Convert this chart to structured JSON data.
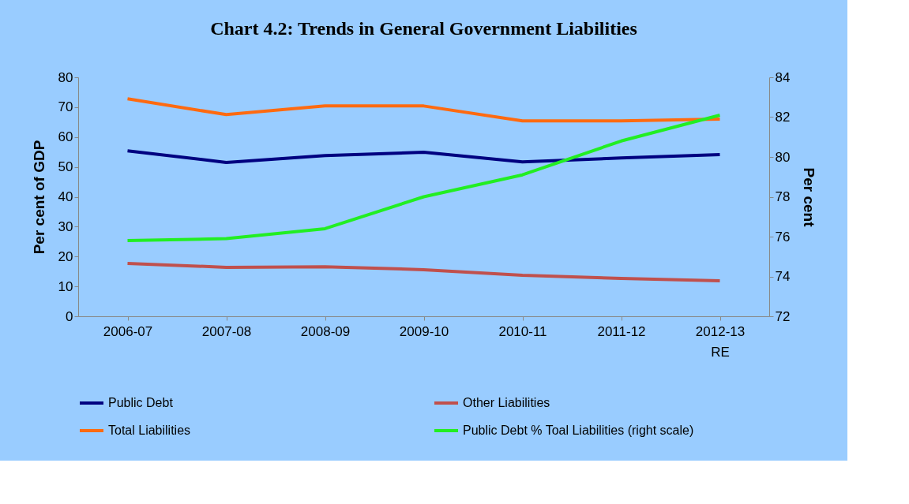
{
  "chart_data": {
    "type": "line",
    "title": "Chart 4.2: Trends in General Government Liabilities",
    "ylabel": "Per cent of GDP",
    "y2label": "Per cent",
    "categories": [
      "2006-07",
      "2007-08",
      "2008-09",
      "2009-10",
      "2010-11",
      "2011-12",
      "2012-13 RE"
    ],
    "series": [
      {
        "name": "Public Debt",
        "color": "#000080",
        "values": [
          55.4,
          51.5,
          53.8,
          54.9,
          51.7,
          53.0,
          54.1
        ]
      },
      {
        "name": "Other Liabilities",
        "color": "#c0504d",
        "values": [
          17.7,
          16.4,
          16.6,
          15.6,
          13.7,
          12.7,
          11.9
        ]
      },
      {
        "name": "Total Liabilities",
        "color": "#ff6a10",
        "values": [
          72.8,
          67.5,
          70.4,
          70.4,
          65.4,
          65.4,
          66.0
        ]
      },
      {
        "name": "Public Debt % Toal Liabilities (right scale)",
        "color": "#22ee22",
        "axis": "y2",
        "values": [
          75.8,
          75.9,
          76.4,
          78.0,
          79.1,
          80.8,
          82.1
        ]
      }
    ],
    "ylim": [
      0,
      80
    ],
    "yticks": [
      0,
      10,
      20,
      30,
      40,
      50,
      60,
      70,
      80
    ],
    "y2lim": [
      72,
      84
    ],
    "y2ticks": [
      72,
      74,
      76,
      78,
      80,
      82,
      84
    ],
    "grid": false,
    "legend": "bottom",
    "marker": "none",
    "line_style": "solid"
  }
}
